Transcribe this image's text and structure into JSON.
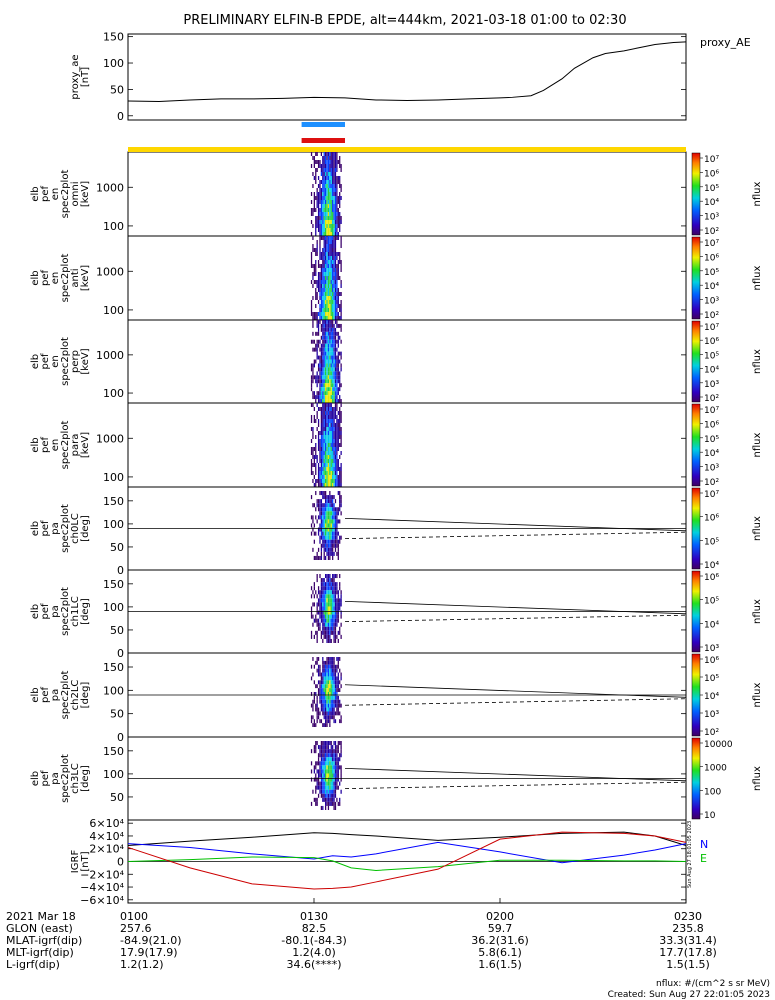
{
  "title": "PRELIMINARY ELFIN-B EPDE, alt=444km, 2021-03-18 01:00 to 02:30",
  "chart_data": [
    {
      "type": "line",
      "ylabel": [
        "proxy_ae",
        "[nT]"
      ],
      "legend": "proxy_AE",
      "ylim": [
        -8,
        155
      ],
      "yticks": [
        "150",
        "100",
        "50",
        "0"
      ],
      "x_minutes": [
        0,
        5,
        10,
        15,
        20,
        25,
        30,
        35,
        40,
        45,
        50,
        55,
        60,
        62,
        65,
        67,
        70,
        72,
        75,
        77,
        80,
        82,
        85,
        88,
        90
      ],
      "values": [
        28,
        27,
        30,
        32,
        32,
        33,
        35,
        34,
        30,
        29,
        30,
        32,
        34,
        35,
        38,
        48,
        70,
        90,
        110,
        118,
        123,
        128,
        135,
        139,
        140
      ]
    },
    {
      "type": "heatmap",
      "ylabel": [
        "elb",
        "pef",
        "en",
        "spec2plot",
        "omni",
        "[keV]"
      ],
      "yticks": [
        "1000",
        "100"
      ],
      "colorbar_ticks": [
        "10⁷",
        "10⁶",
        "10⁵",
        "10⁴",
        "10³",
        "10²"
      ],
      "colorbar_label": "nflux"
    },
    {
      "type": "heatmap",
      "ylabel": [
        "elb",
        "pef",
        "en",
        "spec2plot",
        "anti",
        "[keV]"
      ],
      "yticks": [
        "1000",
        "100"
      ],
      "colorbar_ticks": [
        "10⁷",
        "10⁶",
        "10⁵",
        "10⁴",
        "10³",
        "10²"
      ],
      "colorbar_label": "nflux"
    },
    {
      "type": "heatmap",
      "ylabel": [
        "elb",
        "pef",
        "en",
        "spec2plot",
        "perp",
        "[keV]"
      ],
      "yticks": [
        "1000",
        "100"
      ],
      "colorbar_ticks": [
        "10⁷",
        "10⁶",
        "10⁵",
        "10⁴",
        "10³",
        "10²"
      ],
      "colorbar_label": "nflux"
    },
    {
      "type": "heatmap",
      "ylabel": [
        "elb",
        "pef",
        "en",
        "spec2plot",
        "para",
        "[keV]"
      ],
      "yticks": [
        "1000",
        "100"
      ],
      "colorbar_ticks": [
        "10⁷",
        "10⁶",
        "10⁵",
        "10⁴",
        "10³",
        "10²"
      ],
      "colorbar_label": "nflux"
    },
    {
      "type": "heatmap",
      "ylabel": [
        "elb",
        "pef",
        "pa",
        "spec2plot",
        "ch0LC",
        "[deg]"
      ],
      "yticks": [
        "150",
        "100",
        "50",
        "0"
      ],
      "colorbar_ticks": [
        "10⁷",
        "10⁶",
        "10⁵",
        "10⁴"
      ],
      "colorbar_label": "nflux"
    },
    {
      "type": "heatmap",
      "ylabel": [
        "elb",
        "pef",
        "pa",
        "spec2plot",
        "ch1LC",
        "[deg]"
      ],
      "yticks": [
        "150",
        "100",
        "50",
        "0"
      ],
      "colorbar_ticks": [
        "10⁶",
        "10⁵",
        "10⁴",
        "10³"
      ],
      "colorbar_label": "nflux"
    },
    {
      "type": "heatmap",
      "ylabel": [
        "elb",
        "pef",
        "pa",
        "spec2plot",
        "ch2LC",
        "[deg]"
      ],
      "yticks": [
        "150",
        "100",
        "50",
        "0"
      ],
      "colorbar_ticks": [
        "10⁶",
        "10⁵",
        "10⁴",
        "10³",
        "10²"
      ],
      "colorbar_label": "nflux"
    },
    {
      "type": "heatmap",
      "ylabel": [
        "elb",
        "pef",
        "pa",
        "spec2plot",
        "ch3LC",
        "[deg]"
      ],
      "yticks": [
        "150",
        "100",
        "50"
      ],
      "colorbar_ticks": [
        "10000",
        "1000",
        "100",
        "10"
      ],
      "colorbar_label": "nflux"
    },
    {
      "type": "line",
      "ylabel": [
        "IGRF",
        "[nT]"
      ],
      "ylim": [
        -65000,
        65000
      ],
      "yticks": [
        "6×10⁴",
        "4×10⁴",
        "2×10⁴",
        "0",
        "−2×10⁴",
        "−4×10⁴",
        "−6×10⁴"
      ],
      "legend": [
        "N",
        "E"
      ],
      "x_minutes": [
        0,
        10,
        20,
        30,
        33,
        36,
        40,
        50,
        60,
        70,
        80,
        85,
        90
      ],
      "series": [
        {
          "color": "#000000",
          "values": [
            25000,
            32000,
            38000,
            45000,
            44000,
            42000,
            40000,
            33000,
            38000,
            44000,
            46000,
            40000,
            25000
          ]
        },
        {
          "color": "#0000ff",
          "values": [
            28000,
            22000,
            12000,
            4000,
            9000,
            7000,
            12000,
            30000,
            15000,
            -2000,
            10000,
            18000,
            28000
          ]
        },
        {
          "color": "#00c000",
          "values": [
            0,
            3000,
            7000,
            6000,
            1000,
            -10000,
            -14000,
            -8000,
            2000,
            2000,
            1000,
            1000,
            0
          ]
        },
        {
          "color": "#cc0000",
          "values": [
            22000,
            -10000,
            -35000,
            -43000,
            -42000,
            -40000,
            -32000,
            -12000,
            35000,
            46000,
            44000,
            40000,
            30000
          ]
        }
      ]
    }
  ],
  "xticks": [
    "0100",
    "0130",
    "0200",
    "0230"
  ],
  "ephemeris": [
    {
      "label": "2021 Mar 18",
      "values": [
        "0100",
        "0130",
        "0200",
        "0230"
      ]
    },
    {
      "label": "GLON (east)",
      "values": [
        "257.6",
        "82.5",
        "59.7",
        "235.8"
      ]
    },
    {
      "label": "MLAT-igrf(dip)",
      "values": [
        "-84.9(21.0)",
        "-80.1(-84.3)",
        "36.2(31.6)",
        "33.3(31.4)"
      ]
    },
    {
      "label": "MLT-igrf(dip)",
      "values": [
        "17.9(17.9)",
        "1.2(4.0)",
        "5.8(6.1)",
        "17.7(17.8)"
      ]
    },
    {
      "label": "L-igrf(dip)",
      "values": [
        "1.2(1.2)",
        "34.6(****)",
        "1.6(1.5)",
        "1.5(1.5)"
      ]
    }
  ],
  "footer": {
    "units": "nflux: #/(cm^2 s sr MeV)",
    "created": "Created: Sun Aug 27 22:01:05 2023",
    "side_stamp": "Sun Aug 27 18:01:05 2023"
  },
  "colors": {
    "bar_blue": "#1e90ff",
    "bar_red": "#dd1010",
    "bar_yellow": "#ffd700"
  }
}
